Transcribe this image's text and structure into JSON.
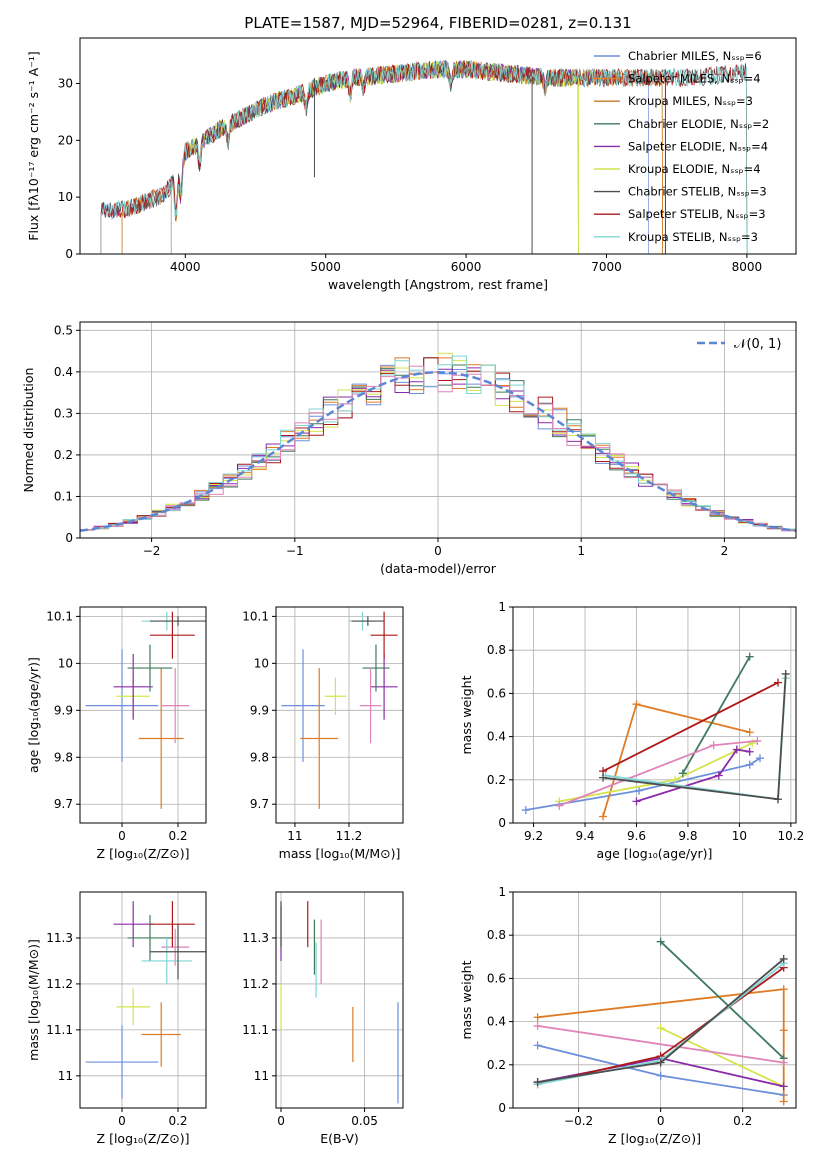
{
  "figure": {
    "title": "PLATE=1587, MJD=52964, FIBERID=0281, z=0.131"
  },
  "colors": {
    "legend_order": [
      "#6b8fdc",
      "#e07b26",
      "#1f7a1f",
      "#8a2ba8",
      "#d4e44c",
      "#3e8a5e",
      "#4d4d4d",
      "#ad1818",
      "#7fd4d4"
    ]
  },
  "chart_data": [
    {
      "id": "spectrum",
      "type": "line",
      "title": "PLATE=1587, MJD=52964, FIBERID=0281, z=0.131",
      "xlabel": "wavelength [Angstrom, rest frame]",
      "ylabel": "Flux [fλ10⁻¹⁷ erg cm⁻² s⁻¹ A⁻¹]",
      "xlim": [
        3250,
        8350
      ],
      "ylim": [
        0,
        38
      ],
      "xticks": [
        4000,
        5000,
        6000,
        7000,
        8000
      ],
      "yticks": [
        0,
        10,
        20,
        30
      ],
      "grid": false,
      "legend_position": "top-right",
      "series": [
        {
          "name": "Chabrier MILES, Nₛₛₚ=6",
          "color": "#6b8fdc",
          "start": 3400,
          "end": 7300
        },
        {
          "name": "Salpeter MILES, Nₛₛₚ=4",
          "color": "#e07b26",
          "start": 3550,
          "end": 7400
        },
        {
          "name": "Kroupa MILES, Nₛₛₚ=3",
          "color": "#c47a2c",
          "start": 3550,
          "end": 7400
        },
        {
          "name": "Chabrier ELODIE, Nₛₛₚ=2",
          "color": "#3e7a5e",
          "start": 3900,
          "end": 6800
        },
        {
          "name": "Salpeter ELODIE, Nₛₛₚ=4",
          "color": "#8a2ba8",
          "start": 3900,
          "end": 6800
        },
        {
          "name": "Kroupa ELODIE, Nₛₛₚ=4",
          "color": "#d4e44c",
          "start": 3900,
          "end": 6800
        },
        {
          "name": "Chabrier STELIB, Nₛₛₚ=3",
          "color": "#4d4d4d",
          "start": 3400,
          "end": 8000
        },
        {
          "name": "Salpeter STELIB, Nₛₛₚ=3",
          "color": "#ad1818",
          "start": 3400,
          "end": 8000
        },
        {
          "name": "Kroupa STELIB, Nₛₛₚ=3",
          "color": "#7fd4d4",
          "start": 3400,
          "end": 8000
        }
      ],
      "continuum": {
        "x": [
          3400,
          3600,
          3700,
          3850,
          3950,
          4000,
          4100,
          4250,
          4400,
          4600,
          4800,
          4900,
          5000,
          5200,
          5400,
          5600,
          5800,
          6000,
          6200,
          6400,
          6600,
          6800,
          7000,
          7200,
          7400,
          7600,
          7800,
          8000
        ],
        "y": [
          7.5,
          8,
          9,
          10.5,
          14,
          18,
          19.5,
          22,
          24,
          26.5,
          28,
          29,
          30,
          31,
          31.5,
          32,
          32.5,
          32.5,
          32,
          31.5,
          31,
          31,
          31,
          31,
          31,
          31,
          31.5,
          32
        ]
      }
    },
    {
      "id": "residuals",
      "type": "histogram",
      "xlabel": "(data-model)/error",
      "ylabel": "Normed distribution",
      "xlim": [
        -2.5,
        2.5
      ],
      "ylim": [
        0,
        0.52
      ],
      "xticks": [
        -2,
        -1,
        0,
        1,
        2
      ],
      "yticks": [
        0.0,
        0.1,
        0.2,
        0.3,
        0.4,
        0.5
      ],
      "grid": true,
      "legend": [
        {
          "label": "𝒩(0, 1)",
          "color": "#5b86d6",
          "style": "dashed"
        }
      ],
      "legend_position": "top-right",
      "bin_width": 0.1,
      "bin_start": -2.5,
      "series_colors": [
        "#6b8fdc",
        "#e07b26",
        "#3e7a5e",
        "#8a2ba8",
        "#d4e44c",
        "#ad1818",
        "#7fd4d4",
        "#e083b8"
      ]
    },
    {
      "id": "age-vs-Z",
      "type": "errorbar",
      "xlabel": "Z [log₁₀(Z/Z⊙)]",
      "ylabel": "age  [log₁₀(age/yr)]",
      "xlim": [
        -0.15,
        0.3
      ],
      "ylim": [
        9.66,
        10.12
      ],
      "xticks": [
        0.0,
        0.2
      ],
      "yticks": [
        9.7,
        9.8,
        9.9,
        10.0,
        10.1
      ],
      "grid": true,
      "points": [
        {
          "color": "#6b8fdc",
          "x": 0.0,
          "xerr": 0.13,
          "y": 9.91,
          "yerr": 0.12
        },
        {
          "color": "#e07b26",
          "x": 0.14,
          "xerr": 0.08,
          "y": 9.84,
          "yerr": 0.15
        },
        {
          "color": "#d4e44c",
          "x": 0.04,
          "xerr": 0.06,
          "y": 9.93,
          "yerr": 0.04
        },
        {
          "color": "#8a2ba8",
          "x": 0.04,
          "xerr": 0.07,
          "y": 9.95,
          "yerr": 0.07
        },
        {
          "color": "#3e7a5e",
          "x": 0.1,
          "xerr": 0.08,
          "y": 9.99,
          "yerr": 0.05
        },
        {
          "color": "#e083b8",
          "x": 0.19,
          "xerr": 0.05,
          "y": 9.91,
          "yerr": 0.08
        },
        {
          "color": "#ad1818",
          "x": 0.18,
          "xerr": 0.08,
          "y": 10.06,
          "yerr": 0.05
        },
        {
          "color": "#7fd4d4",
          "x": 0.16,
          "xerr": 0.09,
          "y": 10.09,
          "yerr": 0.02
        },
        {
          "color": "#4d4d4d",
          "x": 0.2,
          "xerr": 0.1,
          "y": 10.09,
          "yerr": 0.01
        }
      ]
    },
    {
      "id": "age-vs-mass",
      "type": "errorbar",
      "xlabel": "mass [log₁₀(M/M⊙)]",
      "ylabel": "",
      "xlim": [
        10.93,
        11.4
      ],
      "ylim": [
        9.66,
        10.12
      ],
      "xticks": [
        11.0,
        11.2
      ],
      "yticks": [
        9.7,
        9.8,
        9.9,
        10.0,
        10.1
      ],
      "grid": true,
      "points": [
        {
          "color": "#6b8fdc",
          "x": 11.03,
          "xerr": 0.08,
          "y": 9.91,
          "yerr": 0.12
        },
        {
          "color": "#e07b26",
          "x": 11.09,
          "xerr": 0.07,
          "y": 9.84,
          "yerr": 0.15
        },
        {
          "color": "#d4e44c",
          "x": 11.15,
          "xerr": 0.04,
          "y": 9.93,
          "yerr": 0.04
        },
        {
          "color": "#8a2ba8",
          "x": 11.33,
          "xerr": 0.05,
          "y": 9.95,
          "yerr": 0.07
        },
        {
          "color": "#3e7a5e",
          "x": 11.3,
          "xerr": 0.05,
          "y": 9.99,
          "yerr": 0.05
        },
        {
          "color": "#e083b8",
          "x": 11.28,
          "xerr": 0.04,
          "y": 9.91,
          "yerr": 0.08
        },
        {
          "color": "#ad1818",
          "x": 11.33,
          "xerr": 0.05,
          "y": 10.06,
          "yerr": 0.05
        },
        {
          "color": "#7fd4d4",
          "x": 11.25,
          "xerr": 0.05,
          "y": 10.09,
          "yerr": 0.02
        },
        {
          "color": "#4d4d4d",
          "x": 11.27,
          "xerr": 0.06,
          "y": 10.09,
          "yerr": 0.01
        }
      ]
    },
    {
      "id": "weight-vs-age",
      "type": "line",
      "xlabel": "age  [log₁₀(age/yr)]",
      "ylabel": "mass weight",
      "xlim": [
        9.12,
        10.22
      ],
      "ylim": [
        0,
        1
      ],
      "xticks": [
        9.2,
        9.4,
        9.6,
        9.8,
        10.0,
        10.2
      ],
      "yticks": [
        0.0,
        0.2,
        0.4,
        0.6,
        0.8,
        1.0
      ],
      "grid": true,
      "series": [
        {
          "color": "#6b8fdc",
          "x": [
            9.17,
            9.61,
            10.04,
            10.08
          ],
          "y": [
            0.06,
            0.15,
            0.27,
            0.3
          ]
        },
        {
          "color": "#e07b26",
          "x": [
            9.47,
            9.6,
            10.04
          ],
          "y": [
            0.03,
            0.55,
            0.42
          ]
        },
        {
          "color": "#d4e44c",
          "x": [
            9.3,
            9.75,
            10.05
          ],
          "y": [
            0.1,
            0.2,
            0.37
          ]
        },
        {
          "color": "#8a2ba8",
          "x": [
            9.6,
            9.92,
            9.99,
            10.04
          ],
          "y": [
            0.1,
            0.22,
            0.34,
            0.33
          ]
        },
        {
          "color": "#3e7a5e",
          "x": [
            9.78,
            10.04
          ],
          "y": [
            0.23,
            0.77
          ]
        },
        {
          "color": "#e083b8",
          "x": [
            9.3,
            9.9,
            10.07
          ],
          "y": [
            0.08,
            0.36,
            0.38
          ]
        },
        {
          "color": "#ad1818",
          "x": [
            9.47,
            10.15
          ],
          "y": [
            0.24,
            0.65
          ]
        },
        {
          "color": "#7fd4d4",
          "x": [
            9.48,
            10.15,
            10.18
          ],
          "y": [
            0.22,
            0.11,
            0.67
          ]
        },
        {
          "color": "#4d4d4d",
          "x": [
            9.47,
            10.15,
            10.18
          ],
          "y": [
            0.21,
            0.11,
            0.69
          ]
        }
      ]
    },
    {
      "id": "mass-vs-Z",
      "type": "errorbar",
      "xlabel": "Z [log₁₀(Z/Z⊙)]",
      "ylabel": "mass [log₁₀(M/M⊙)]",
      "xlim": [
        -0.15,
        0.3
      ],
      "ylim": [
        10.93,
        11.4
      ],
      "xticks": [
        0.0,
        0.2
      ],
      "yticks": [
        11.0,
        11.1,
        11.2,
        11.3
      ],
      "grid": true,
      "points": [
        {
          "color": "#6b8fdc",
          "x": 0.0,
          "xerr": 0.13,
          "y": 11.03,
          "yerr": 0.08
        },
        {
          "color": "#e07b26",
          "x": 0.14,
          "xerr": 0.07,
          "y": 11.09,
          "yerr": 0.07
        },
        {
          "color": "#d4e44c",
          "x": 0.04,
          "xerr": 0.06,
          "y": 11.15,
          "yerr": 0.04
        },
        {
          "color": "#8a2ba8",
          "x": 0.04,
          "xerr": 0.07,
          "y": 11.33,
          "yerr": 0.05
        },
        {
          "color": "#3e7a5e",
          "x": 0.1,
          "xerr": 0.08,
          "y": 11.3,
          "yerr": 0.05
        },
        {
          "color": "#e083b8",
          "x": 0.19,
          "xerr": 0.05,
          "y": 11.28,
          "yerr": 0.04
        },
        {
          "color": "#ad1818",
          "x": 0.18,
          "xerr": 0.08,
          "y": 11.33,
          "yerr": 0.05
        },
        {
          "color": "#7fd4d4",
          "x": 0.16,
          "xerr": 0.09,
          "y": 11.25,
          "yerr": 0.05
        },
        {
          "color": "#4d4d4d",
          "x": 0.2,
          "xerr": 0.1,
          "y": 11.27,
          "yerr": 0.06
        }
      ]
    },
    {
      "id": "mass-vs-ebv",
      "type": "errorbar",
      "xlabel": "E(B-V)",
      "ylabel": "",
      "xlim": [
        -0.003,
        0.073
      ],
      "ylim": [
        10.93,
        11.4
      ],
      "xticks": [
        0.0,
        0.05
      ],
      "yticks": [
        11.0,
        11.1,
        11.2,
        11.3
      ],
      "grid": true,
      "points": [
        {
          "color": "#6b8fdc",
          "x": 0.07,
          "xerr": 0,
          "y": 11.05,
          "yerr": 0.11
        },
        {
          "color": "#e07b26",
          "x": 0.043,
          "xerr": 0,
          "y": 11.09,
          "yerr": 0.06
        },
        {
          "color": "#d4e44c",
          "x": 0.0,
          "xerr": 0,
          "y": 11.15,
          "yerr": 0.05
        },
        {
          "color": "#8a2ba8",
          "x": 0.0,
          "xerr": 0,
          "y": 11.31,
          "yerr": 0.06
        },
        {
          "color": "#3e7a5e",
          "x": 0.02,
          "xerr": 0,
          "y": 11.28,
          "yerr": 0.06
        },
        {
          "color": "#e083b8",
          "x": 0.024,
          "xerr": 0,
          "y": 11.27,
          "yerr": 0.07
        },
        {
          "color": "#ad1818",
          "x": 0.016,
          "xerr": 0,
          "y": 11.33,
          "yerr": 0.05
        },
        {
          "color": "#7fd4d4",
          "x": 0.021,
          "xerr": 0,
          "y": 11.23,
          "yerr": 0.06
        },
        {
          "color": "#4d4d4d",
          "x": 0.0,
          "xerr": 0,
          "y": 11.33,
          "yerr": 0.05
        }
      ]
    },
    {
      "id": "weight-vs-Z",
      "type": "line",
      "xlabel": "Z [log₁₀(Z/Z⊙)]",
      "ylabel": "mass weight",
      "xlim": [
        -0.36,
        0.33
      ],
      "ylim": [
        0,
        1
      ],
      "xticks": [
        -0.2,
        0.0,
        0.2
      ],
      "yticks": [
        0.0,
        0.2,
        0.4,
        0.6,
        0.8,
        1.0
      ],
      "grid": true,
      "series": [
        {
          "color": "#6b8fdc",
          "x": [
            -0.3,
            0.0,
            0.3
          ],
          "y": [
            0.29,
            0.15,
            0.06
          ]
        },
        {
          "color": "#e07b26",
          "x": [
            -0.3,
            0.3,
            0.3,
            0.3
          ],
          "y": [
            0.42,
            0.55,
            0.03,
            0.36
          ]
        },
        {
          "color": "#d4e44c",
          "x": [
            0.0,
            0.3
          ],
          "y": [
            0.37,
            0.1
          ]
        },
        {
          "color": "#8a2ba8",
          "x": [
            -0.3,
            0.0,
            0.3
          ],
          "y": [
            0.12,
            0.23,
            0.1
          ]
        },
        {
          "color": "#3e7a5e",
          "x": [
            0.0,
            0.3
          ],
          "y": [
            0.77,
            0.23
          ]
        },
        {
          "color": "#e083b8",
          "x": [
            -0.3,
            0.3
          ],
          "y": [
            0.38,
            0.21
          ]
        },
        {
          "color": "#ad1818",
          "x": [
            -0.3,
            0.0,
            0.3
          ],
          "y": [
            0.11,
            0.24,
            0.65
          ]
        },
        {
          "color": "#7fd4d4",
          "x": [
            -0.3,
            0.0,
            0.3
          ],
          "y": [
            0.11,
            0.22,
            0.67
          ]
        },
        {
          "color": "#4d4d4d",
          "x": [
            -0.3,
            0.0,
            0.3
          ],
          "y": [
            0.12,
            0.21,
            0.69
          ]
        }
      ]
    }
  ]
}
